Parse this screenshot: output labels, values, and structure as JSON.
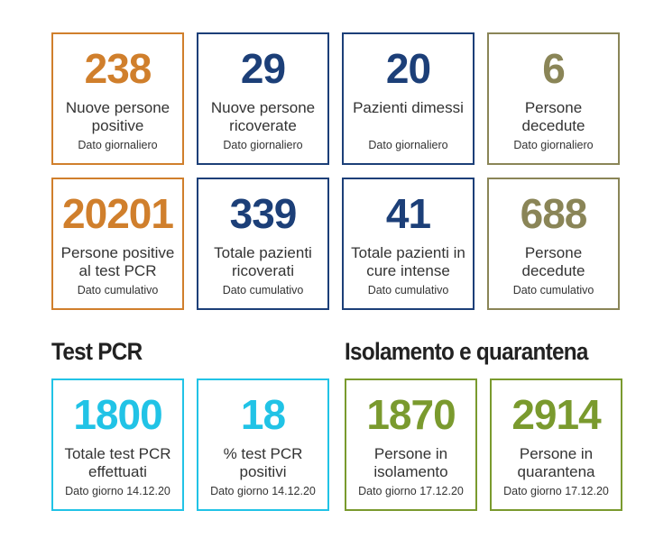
{
  "colors": {
    "orange": "#d07f2c",
    "blue": "#1c3f78",
    "olive": "#8a8557",
    "cyan": "#21c3e6",
    "green": "#7a9a2e"
  },
  "daily": {
    "new_positive": {
      "value": "238",
      "label": "Nuove persone positive",
      "sub": "Dato giornaliero"
    },
    "new_hospitalized": {
      "value": "29",
      "label": "Nuove persone ricoverate",
      "sub": "Dato giornaliero"
    },
    "discharged": {
      "value": "20",
      "label": "Pazienti dimessi",
      "sub": "Dato giornaliero"
    },
    "deceased": {
      "value": "6",
      "label": "Persone decedute",
      "sub": "Dato giornaliero"
    }
  },
  "cumulative": {
    "positive_pcr": {
      "value": "20201",
      "label": "Persone positive al test PCR",
      "sub": "Dato cumulativo"
    },
    "total_hospitalized": {
      "value": "339",
      "label": "Totale pazienti ricoverati",
      "sub": "Dato cumulativo"
    },
    "intensive_care": {
      "value": "41",
      "label": "Totale pazienti in cure intense",
      "sub": "Dato cumulativo"
    },
    "deceased": {
      "value": "688",
      "label": "Persone decedute",
      "sub": "Dato cumulativo"
    }
  },
  "pcr_section": {
    "title": "Test PCR",
    "total_tests": {
      "value": "1800",
      "label": "Totale test PCR effettuati",
      "sub": "Dato giorno 14.12.20"
    },
    "percent_positive": {
      "value": "18",
      "label": "% test PCR positivi",
      "sub": "Dato giorno 14.12.20"
    }
  },
  "isolation_section": {
    "title": "Isolamento e quarantena",
    "isolation": {
      "value": "1870",
      "label": "Persone in isolamento",
      "sub": "Dato giorno 17.12.20"
    },
    "quarantine": {
      "value": "2914",
      "label": "Persone in quarantena",
      "sub": "Dato giorno 17.12.20"
    }
  }
}
